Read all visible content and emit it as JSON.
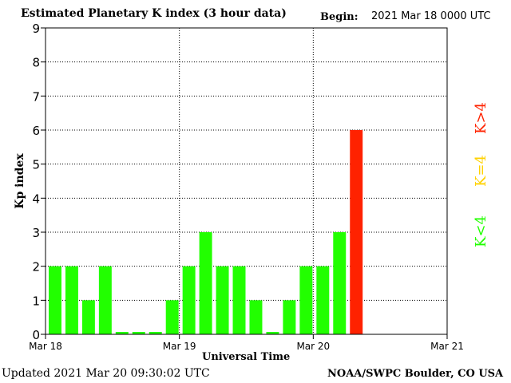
{
  "header": {
    "title": "Estimated Planetary K index (3 hour data)",
    "begin_label": "Begin:",
    "begin_value": "2021 Mar 18 0000 UTC"
  },
  "footer": {
    "updated": "Updated 2021 Mar 20 09:30:02 UTC",
    "credit": "NOAA/SWPC Boulder, CO USA"
  },
  "colors": {
    "low": "#22ff00",
    "mid": "#ffd200",
    "high": "#ff2200",
    "grid": "#000000"
  },
  "chart_data": {
    "type": "bar",
    "title": "Estimated Planetary K index (3 hour data)",
    "xlabel": "Universal Time",
    "ylabel": "Kp index",
    "ylim": [
      0,
      9
    ],
    "yticks": [
      "0",
      "1",
      "2",
      "3",
      "4",
      "5",
      "6",
      "7",
      "8",
      "9"
    ],
    "xticks": [
      "Mar 18",
      "Mar 19",
      "Mar 20",
      "Mar 21"
    ],
    "grid": "dotted",
    "slots_total": 24,
    "values": [
      2,
      2,
      1,
      2,
      0,
      0,
      0,
      1,
      2,
      3,
      2,
      2,
      1,
      0,
      1,
      2,
      2,
      3,
      6
    ],
    "legend": [
      {
        "label": "K<4",
        "color": "#22ff00"
      },
      {
        "label": "K=4",
        "color": "#ffd200"
      },
      {
        "label": "K>4",
        "color": "#ff2200"
      }
    ]
  }
}
